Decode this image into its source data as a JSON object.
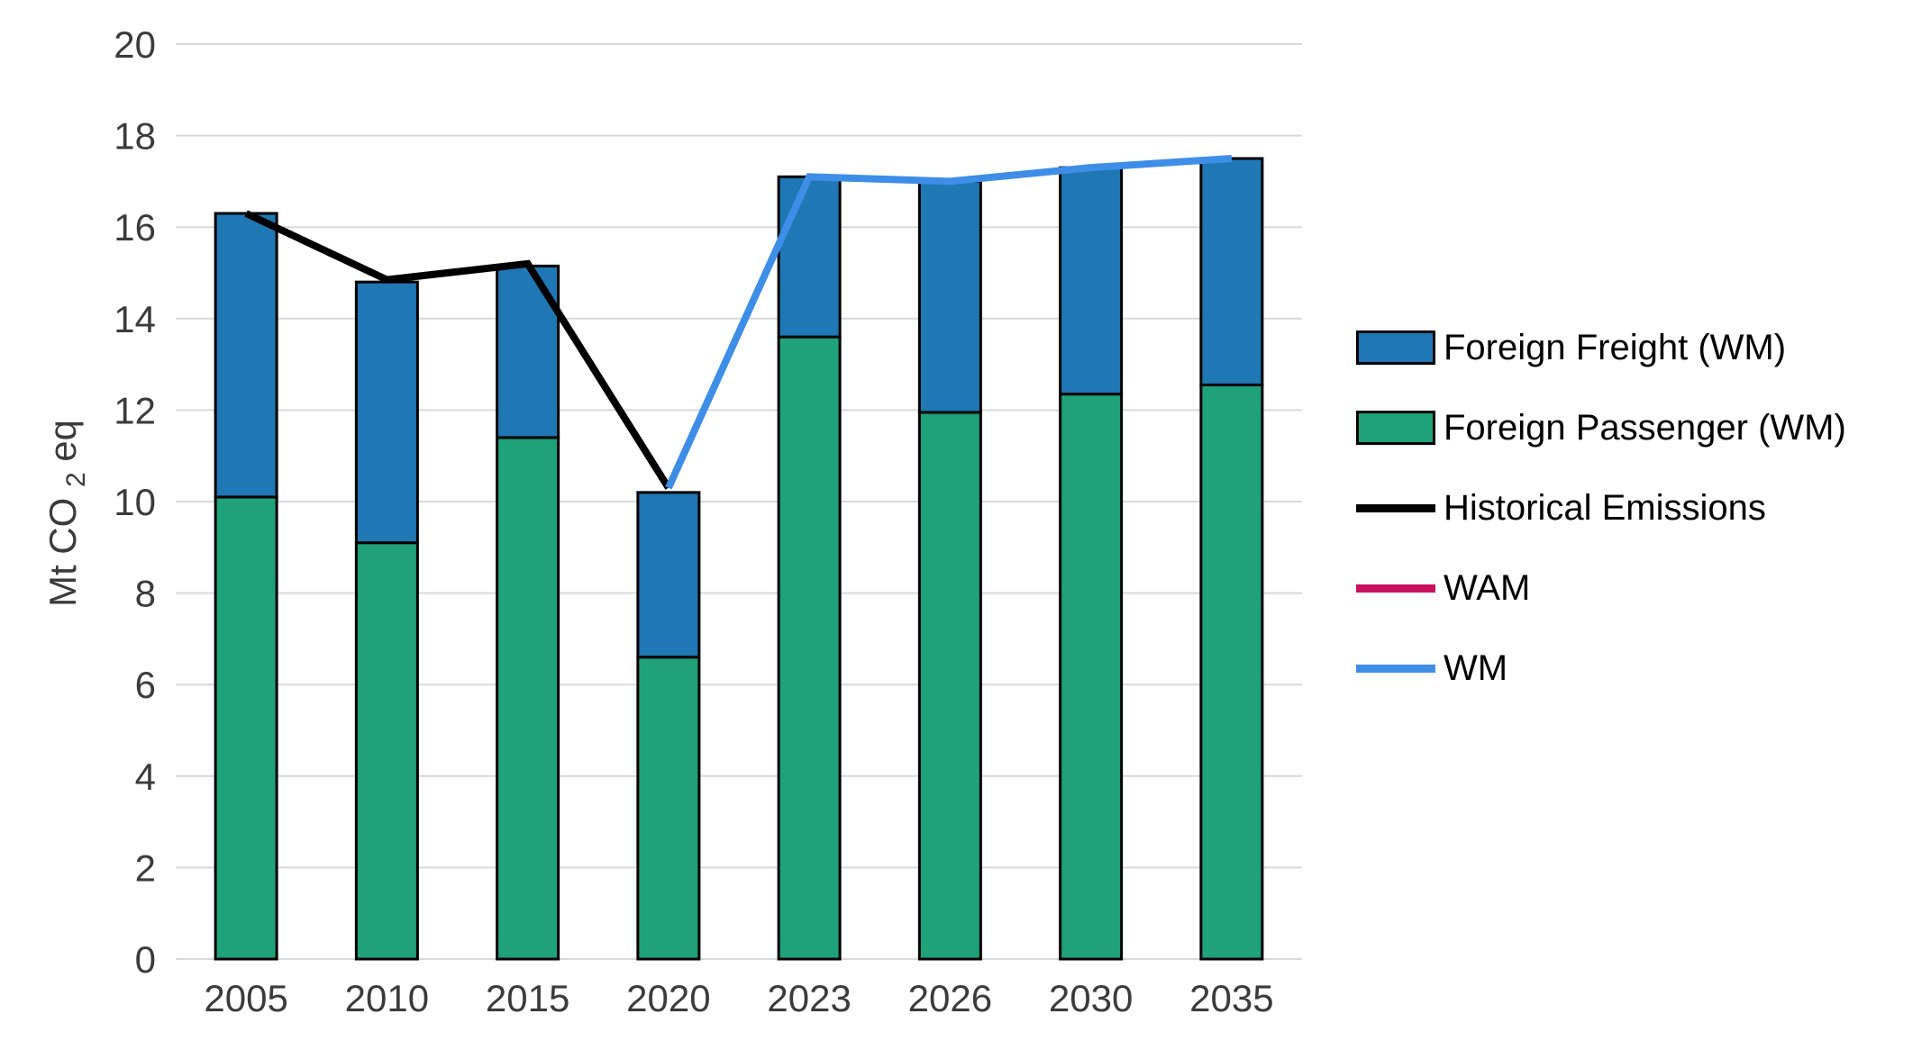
{
  "chart_data": {
    "type": "bar",
    "stacked": true,
    "title": "",
    "categories": [
      "2005",
      "2010",
      "2015",
      "2020",
      "2023",
      "2026",
      "2030",
      "2035"
    ],
    "bar_series": [
      {
        "name": "Foreign Passenger (WM)",
        "color": "#1FA179",
        "values": [
          10.1,
          9.1,
          11.4,
          6.6,
          13.6,
          11.95,
          12.35,
          12.55
        ]
      },
      {
        "name": "Foreign Freight (WM)",
        "color": "#1F77B4",
        "values": [
          6.2,
          5.7,
          3.75,
          3.6,
          3.5,
          5.05,
          4.95,
          4.95
        ]
      }
    ],
    "line_series": [
      {
        "name": "Historical Emissions",
        "color": "#000000",
        "width": 8,
        "values": [
          16.3,
          14.85,
          15.2,
          10.3,
          null,
          null,
          null,
          null
        ]
      },
      {
        "name": "WAM",
        "color": "#C9105C",
        "width": 8,
        "values": [
          null,
          null,
          null,
          null,
          null,
          null,
          null,
          null
        ]
      },
      {
        "name": "WM",
        "color": "#3E8EE8",
        "width": 8,
        "values": [
          null,
          null,
          null,
          10.3,
          17.1,
          17.0,
          17.3,
          17.5
        ]
      }
    ],
    "ylabel": {
      "prefix": "Mt CO",
      "sub": "2",
      "suffix": " eq"
    },
    "ylim": [
      0,
      20
    ],
    "ytick_step": 2,
    "grid": true,
    "legend_position": "right",
    "legend": [
      {
        "label": "Foreign Freight (WM)",
        "swatch": "bar",
        "color": "#1F77B4"
      },
      {
        "label": "Foreign Passenger (WM)",
        "swatch": "bar",
        "color": "#1FA179"
      },
      {
        "label": "Historical Emissions",
        "swatch": "line",
        "color": "#000000"
      },
      {
        "label": "WAM",
        "swatch": "line",
        "color": "#C9105C"
      },
      {
        "label": "WM",
        "swatch": "line",
        "color": "#3E8EE8"
      }
    ],
    "colors": {
      "grid": "#D9D9D9",
      "tick_text": "#3b3b3b",
      "background": "#FFFFFF"
    }
  }
}
